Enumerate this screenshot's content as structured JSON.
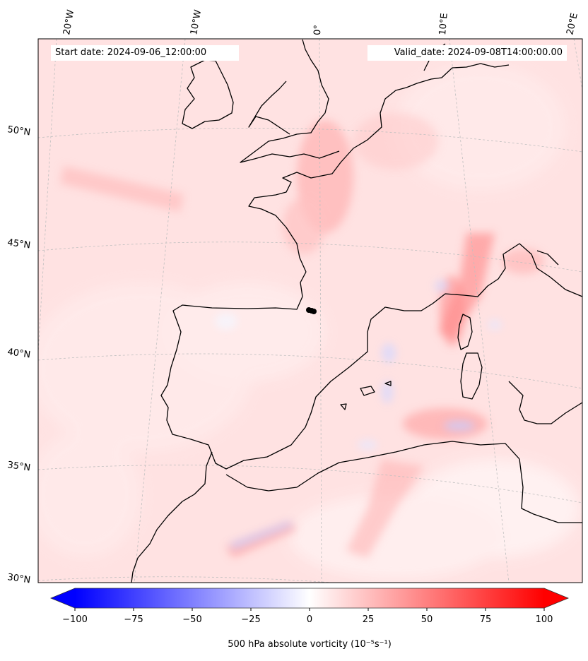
{
  "header": {
    "start_label": "Start date:",
    "start_value": "2024-09-06_12:00:00",
    "valid_label": "Valid_date:",
    "valid_value": "2024-09-08T14:00:00.00"
  },
  "map": {
    "projection": "lambert-conformal",
    "longitude_labels": [
      "20°W",
      "10°W",
      "0°",
      "10°E",
      "20°E"
    ],
    "latitude_labels": [
      "50°N",
      "45°N",
      "40°N",
      "35°N",
      "30°N"
    ],
    "gridlines": "dashed",
    "coastlines": true,
    "marker": "black-dot-southwest-france"
  },
  "colorbar": {
    "title": "500 hPa absolute vorticity (10⁻⁵s⁻¹)",
    "range": [
      -100,
      100
    ],
    "ticks": [
      "−100",
      "−75",
      "−50",
      "−25",
      "0",
      "25",
      "50",
      "75",
      "100"
    ],
    "colormap": "bwr",
    "extend": "both",
    "low_color": "#0000ff",
    "mid_color": "#ffffff",
    "high_color": "#ff0000"
  }
}
